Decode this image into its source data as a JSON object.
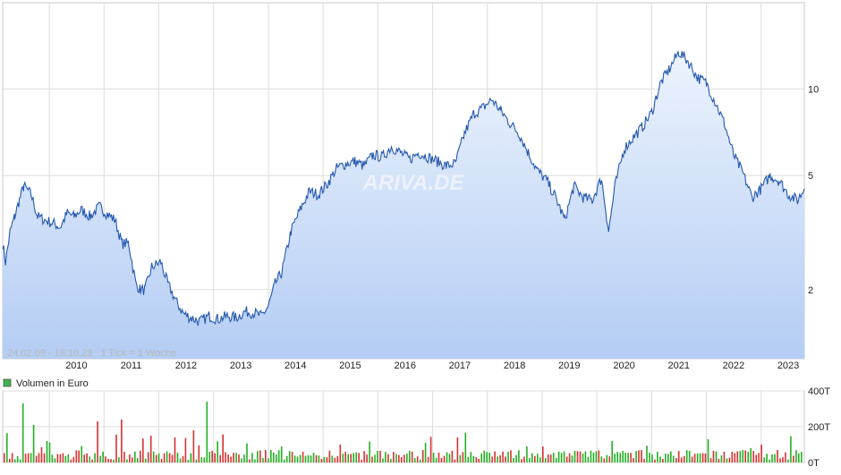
{
  "chart_data": [
    {
      "type": "area",
      "scale": "log",
      "x_tick_labels": [
        "2010",
        "2011",
        "2012",
        "2013",
        "2014",
        "2015",
        "2016",
        "2017",
        "2018",
        "2019",
        "2020",
        "2021",
        "2022",
        "2023"
      ],
      "y_tick_labels": [
        "10",
        "5",
        "2"
      ],
      "y_ticks": [
        10,
        5,
        2
      ],
      "ylim": [
        1.15,
        20
      ],
      "period_note": "24.02.09 - 16.10.23   1 Tick = 1 Woche",
      "watermark": "ARIVA.DE",
      "colors": {
        "line": "#2457b0",
        "fill_top": "#ecf3fd",
        "fill_bottom": "#b4cdf4",
        "grid": "#dcdcdc"
      },
      "series": [
        {
          "x": [
            "2009-02-24",
            "2009-03-15",
            "2009-04-15",
            "2009-05-15",
            "2009-06-15",
            "2009-07-15",
            "2009-09-01",
            "2009-10-15",
            "2009-12-01",
            "2010-02-01",
            "2010-03-15",
            "2010-05-01",
            "2010-06-15",
            "2010-08-01",
            "2010-10-01",
            "2010-12-01",
            "2011-01-15",
            "2011-03-15",
            "2011-05-01",
            "2011-06-15",
            "2011-08-01",
            "2011-09-01",
            "2011-10-01",
            "2011-11-15",
            "2012-01-15",
            "2012-03-01",
            "2012-05-01",
            "2012-06-15",
            "2012-08-01",
            "2012-10-01",
            "2012-12-01",
            "2013-02-01",
            "2013-04-01",
            "2013-06-01",
            "2013-08-01",
            "2013-10-01",
            "2013-11-15",
            "2014-01-01",
            "2014-02-15",
            "2014-04-01",
            "2014-06-01",
            "2014-08-01",
            "2014-10-01",
            "2014-12-01",
            "2015-02-01",
            "2015-04-01",
            "2015-06-01",
            "2015-08-01",
            "2015-10-01",
            "2015-12-01",
            "2016-02-01",
            "2016-04-01",
            "2016-06-01",
            "2016-08-01",
            "2016-10-01",
            "2016-12-01",
            "2017-02-01",
            "2017-04-01",
            "2017-06-01",
            "2017-08-01",
            "2017-10-01",
            "2017-12-01",
            "2018-02-01",
            "2018-04-01",
            "2018-06-01",
            "2018-08-01",
            "2018-10-01",
            "2018-12-01",
            "2019-02-01",
            "2019-04-01",
            "2019-06-01",
            "2019-08-01",
            "2019-10-01",
            "2019-12-01",
            "2020-02-01",
            "2020-03-20",
            "2020-05-01",
            "2020-07-01",
            "2020-09-01",
            "2020-11-01",
            "2021-01-01",
            "2021-03-01",
            "2021-05-01",
            "2021-07-01",
            "2021-09-01",
            "2021-11-01",
            "2022-01-01",
            "2022-03-01",
            "2022-05-01",
            "2022-07-01",
            "2022-09-01",
            "2022-11-01",
            "2023-01-01",
            "2023-03-01",
            "2023-05-01",
            "2023-07-01",
            "2023-09-01",
            "2023-10-16"
          ],
          "values": [
            2.9,
            2.5,
            3.2,
            3.6,
            4.1,
            4.6,
            4.3,
            3.6,
            3.5,
            3.4,
            3.3,
            3.7,
            3.6,
            3.8,
            3.6,
            3.9,
            3.7,
            3.5,
            2.9,
            2.9,
            2.1,
            2.0,
            2.0,
            2.4,
            2.5,
            2.1,
            1.8,
            1.65,
            1.6,
            1.55,
            1.62,
            1.58,
            1.62,
            1.6,
            1.68,
            1.66,
            1.62,
            1.75,
            2.1,
            2.3,
            3.2,
            3.8,
            4.4,
            4.3,
            4.7,
            5.3,
            5.5,
            5.6,
            5.4,
            5.9,
            5.8,
            6.3,
            6.0,
            5.7,
            6.0,
            5.8,
            5.6,
            5.4,
            5.5,
            7.0,
            8.2,
            8.6,
            9.2,
            8.4,
            7.6,
            7.0,
            6.0,
            5.2,
            4.8,
            4.2,
            3.5,
            4.6,
            4.2,
            4.1,
            4.9,
            3.2,
            4.6,
            6.2,
            6.8,
            7.4,
            8.3,
            10.5,
            11.8,
            13.5,
            12.5,
            11.0,
            10.5,
            9.0,
            7.6,
            5.9,
            5.1,
            4.2,
            4.5,
            5.0,
            4.8,
            4.3,
            4.1,
            4.5
          ]
        }
      ]
    },
    {
      "type": "bar",
      "legend": "Volumen in Euro",
      "y_tick_labels": [
        "400T",
        "200T",
        "0T"
      ],
      "y_ticks": [
        400,
        200,
        0
      ],
      "ylim": [
        0,
        400
      ],
      "colors": {
        "up": "#22b022",
        "down": "#d93030",
        "legend_box": "#3cb44b"
      },
      "series": [
        {
          "name": "Volumen in Euro",
          "note": "weekly volume, thousand euro; up = green, down = red",
          "values": []
        }
      ]
    }
  ]
}
